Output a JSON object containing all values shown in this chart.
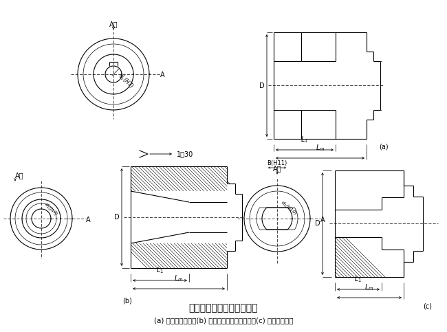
{
  "bg_color": "#ffffff",
  "title_center": "圆柱、圆锥、扁头轴孔联接",
  "subtitle": "(a) 圆柱轴孔联接；(b) 圆锥轴孔注油无键联接；(c) 扁头轴孔联接",
  "label_a_xiang": "A向",
  "label_A": "A",
  "label_D": "D",
  "label_L1": "$L_1$",
  "label_Lm": "$L_m$",
  "label_a": "(a)",
  "label_b": "(b)",
  "label_c": "(c)",
  "label_130": "1：30",
  "label_BH11": "B(H11)",
  "label_d1H7": "$d_1$(H7)",
  "label_d1js7": "$d_1$(js7)",
  "label_d1H10": "$d_1$(H10)"
}
